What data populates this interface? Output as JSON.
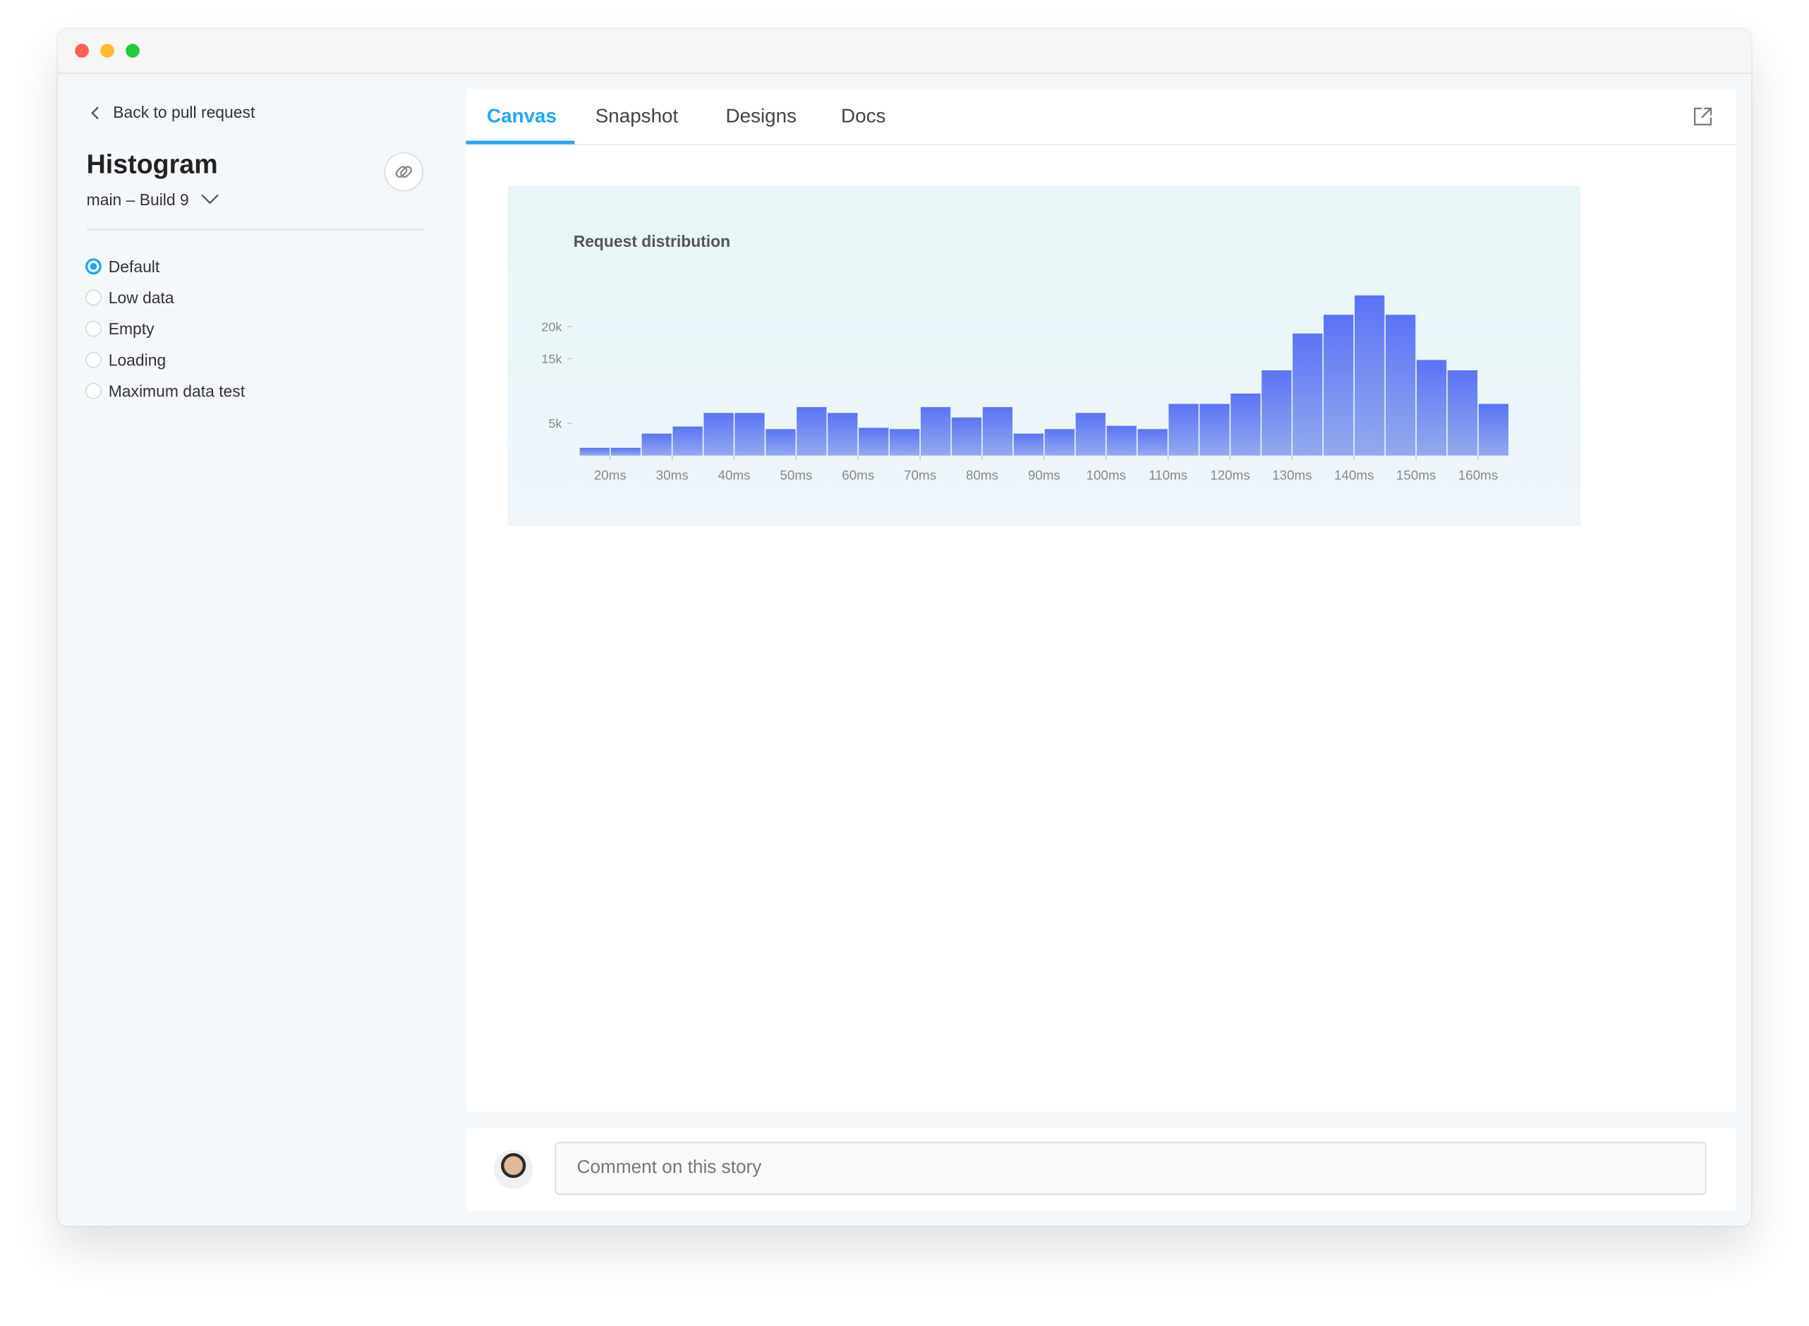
{
  "sidebar": {
    "back": "Back to pull request",
    "title": "Histogram",
    "build": "main – Build 9",
    "options": [
      "Default",
      "Low data",
      "Empty",
      "Loading",
      "Maximum data test"
    ]
  },
  "tabs": [
    "Canvas",
    "Snapshot",
    "Designs",
    "Docs"
  ],
  "comment": {
    "placeholder": "Comment on this story"
  },
  "chart_data": {
    "type": "histogram",
    "title": "Request distribution",
    "bins": [
      15,
      20,
      25,
      30,
      35,
      40,
      45,
      50,
      55,
      60,
      65,
      70,
      75,
      80,
      85,
      90,
      95,
      100,
      105,
      110,
      115,
      120,
      125,
      130,
      135,
      140,
      145,
      150,
      155,
      160,
      165
    ],
    "values": [
      1200,
      1200,
      3400,
      4500,
      6600,
      6600,
      4100,
      7500,
      6600,
      4300,
      4100,
      7500,
      5900,
      7500,
      3400,
      4100,
      6600,
      4600,
      4100,
      8000,
      8000,
      9600,
      13200,
      18900,
      21800,
      24800,
      21800,
      14800,
      13200,
      8000
    ],
    "xlim": [
      15,
      165
    ],
    "xticks": [
      {
        "value": 20,
        "label": "20ms"
      },
      {
        "value": 30,
        "label": "30ms"
      },
      {
        "value": 40,
        "label": "40ms"
      },
      {
        "value": 50,
        "label": "50ms"
      },
      {
        "value": 60,
        "label": "60ms"
      },
      {
        "value": 70,
        "label": "70ms"
      },
      {
        "value": 80,
        "label": "80ms"
      },
      {
        "value": 90,
        "label": "90ms"
      },
      {
        "value": 100,
        "label": "100ms"
      },
      {
        "value": 110,
        "label": "110ms"
      },
      {
        "value": 120,
        "label": "120ms"
      },
      {
        "value": 130,
        "label": "130ms"
      },
      {
        "value": 140,
        "label": "140ms"
      },
      {
        "value": 150,
        "label": "150ms"
      },
      {
        "value": 160,
        "label": "160ms"
      }
    ],
    "ylim": [
      0,
      25000
    ],
    "yticks": [
      {
        "value": 5000,
        "label": "5k"
      },
      {
        "value": 15000,
        "label": "15k"
      },
      {
        "value": 20000,
        "label": "20k"
      }
    ],
    "color_top": "#5b73f6",
    "color_bottom": "#93aaee"
  }
}
